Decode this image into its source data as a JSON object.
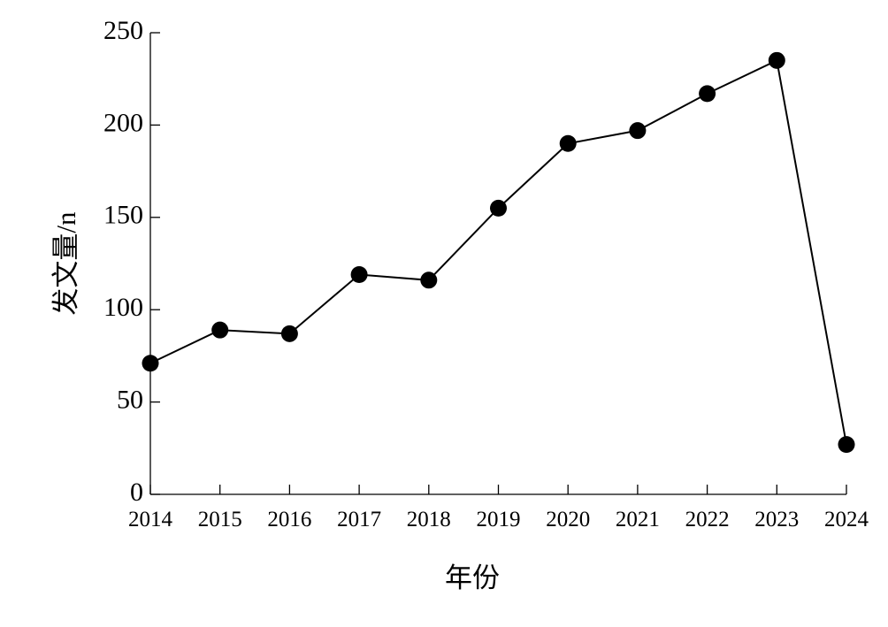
{
  "chart_data": {
    "type": "line",
    "title": "",
    "xlabel": "年份",
    "ylabel": "发文量/n",
    "x": [
      "2014",
      "2015",
      "2016",
      "2017",
      "2018",
      "2019",
      "2020",
      "2021",
      "2022",
      "2023",
      "2024"
    ],
    "series": [
      {
        "values": [
          71,
          89,
          87,
          119,
          116,
          155,
          190,
          197,
          217,
          235,
          27
        ]
      }
    ],
    "yticks": [
      "0",
      "50",
      "100",
      "150",
      "200",
      "250"
    ],
    "ylim": [
      0,
      250
    ],
    "grid": false,
    "legend": "none",
    "colors": {
      "line": "#000000",
      "marker": "#000000"
    }
  }
}
